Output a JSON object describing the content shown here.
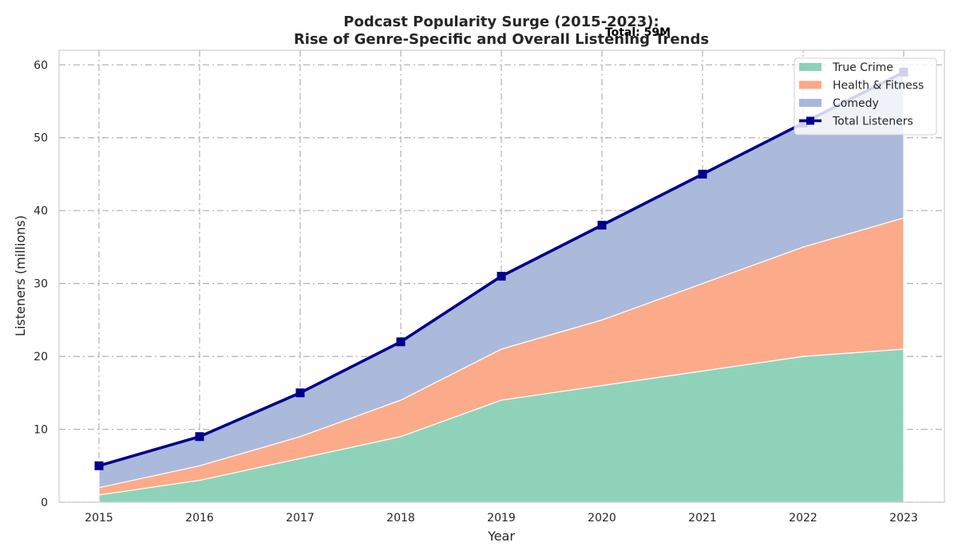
{
  "chart_data": {
    "type": "area",
    "title_line1": "Podcast Popularity Surge (2015-2023):",
    "title_line2": "Rise of Genre-Specific and Overall Listening Trends",
    "xlabel": "Year",
    "ylabel": "Listeners (millions)",
    "x": [
      2015,
      2016,
      2017,
      2018,
      2019,
      2020,
      2021,
      2022,
      2023
    ],
    "ylim": [
      0,
      62
    ],
    "yticks": [
      0,
      10,
      20,
      30,
      40,
      50,
      60
    ],
    "grid": true,
    "legend_position": "top-right",
    "series": [
      {
        "name": "True Crime",
        "kind": "stacked-area",
        "color": "#8dd1b9",
        "values": [
          1,
          3,
          6,
          9,
          14,
          16,
          18,
          20,
          21
        ]
      },
      {
        "name": "Health & Fitness",
        "kind": "stacked-area",
        "color": "#fba988",
        "values": [
          1,
          2,
          3,
          5,
          7,
          9,
          12,
          15,
          18
        ]
      },
      {
        "name": "Comedy",
        "kind": "stacked-area",
        "color": "#a9b8da",
        "values": [
          3,
          4,
          6,
          8,
          10,
          13,
          15,
          17,
          20
        ]
      },
      {
        "name": "Total Listeners",
        "kind": "line",
        "color": "#00008b",
        "values": [
          5,
          9,
          15,
          22,
          31,
          38,
          45,
          52,
          59
        ]
      }
    ],
    "annotation": {
      "text": "Total: 59M",
      "x": 2023,
      "y": 59
    }
  }
}
